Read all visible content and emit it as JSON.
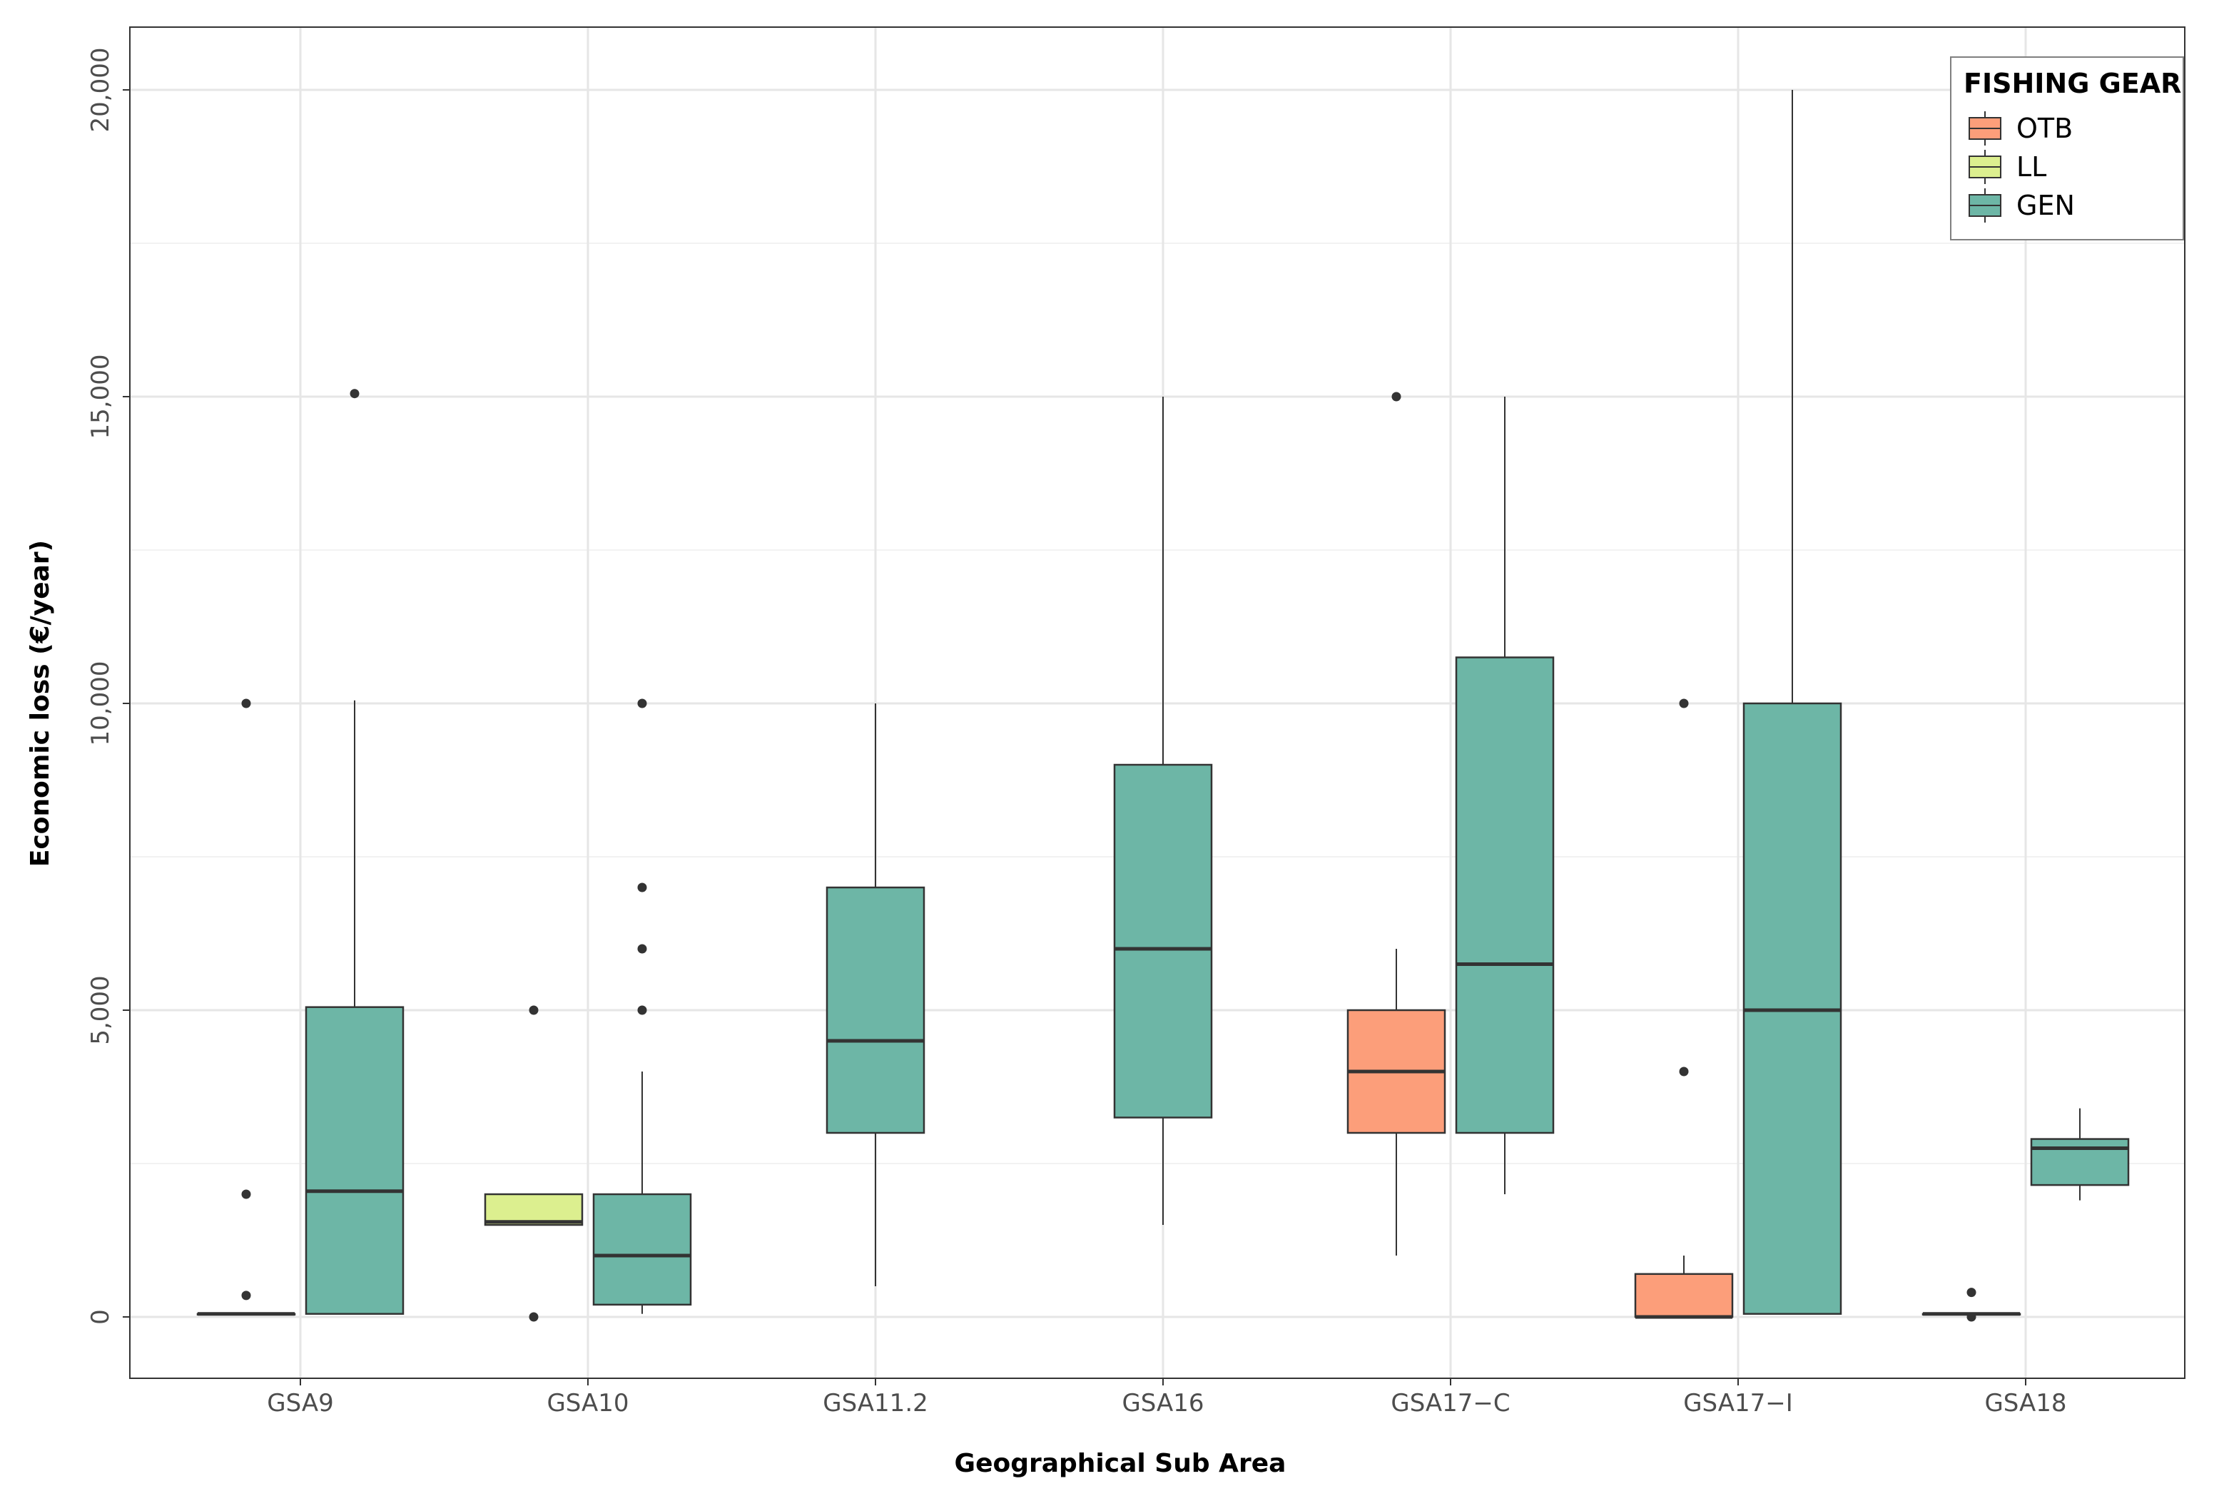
{
  "chart_data": {
    "type": "boxplot",
    "title": "",
    "xlabel": "Geographical Sub Area",
    "ylabel": "Economic loss (€/year)",
    "ylim": [
      -1000,
      21000
    ],
    "yticks": [
      0,
      5000,
      10000,
      15000,
      20000
    ],
    "ytick_labels": [
      "0",
      "5,000",
      "10,000",
      "15,000",
      "20,000"
    ],
    "grid": true,
    "categories": [
      "GSA9",
      "GSA10",
      "GSA11.2",
      "GSA16",
      "GSA17−C",
      "GSA17−I",
      "GSA18"
    ],
    "legend": {
      "title": "FISHING GEAR",
      "position": "top-right",
      "items": [
        {
          "key": "OTB",
          "label": "OTB",
          "color": "#FC9E7A"
        },
        {
          "key": "LL",
          "label": "LL",
          "color": "#DCEF8F"
        },
        {
          "key": "GEN",
          "label": "GEN",
          "color": "#6DB6A6"
        }
      ]
    },
    "series_order": [
      "OTB",
      "LL",
      "GEN"
    ],
    "boxes": [
      {
        "category": "GSA9",
        "gear": "OTB",
        "whisker_low": 50,
        "q1": 50,
        "median": 50,
        "q3": 50,
        "whisker_high": 50,
        "outliers": [
          10000,
          2000,
          350
        ]
      },
      {
        "category": "GSA9",
        "gear": "GEN",
        "whisker_low": 50,
        "q1": 50,
        "median": 2050,
        "q3": 5050,
        "whisker_high": 10050,
        "outliers": [
          15050
        ]
      },
      {
        "category": "GSA10",
        "gear": "LL",
        "whisker_low": 1500,
        "q1": 1500,
        "median": 1550,
        "q3": 2000,
        "whisker_high": 2000,
        "outliers": [
          5000,
          0
        ]
      },
      {
        "category": "GSA10",
        "gear": "GEN",
        "whisker_low": 50,
        "q1": 200,
        "median": 1000,
        "q3": 2000,
        "whisker_high": 4000,
        "outliers": [
          10000,
          7000,
          6000,
          5000
        ]
      },
      {
        "category": "GSA11.2",
        "gear": "GEN",
        "whisker_low": 500,
        "q1": 3000,
        "median": 4500,
        "q3": 7000,
        "whisker_high": 10000,
        "outliers": []
      },
      {
        "category": "GSA16",
        "gear": "GEN",
        "whisker_low": 1500,
        "q1": 3250,
        "median": 6000,
        "q3": 9000,
        "whisker_high": 15000,
        "outliers": []
      },
      {
        "category": "GSA17−C",
        "gear": "OTB",
        "whisker_low": 1000,
        "q1": 3000,
        "median": 4000,
        "q3": 5000,
        "whisker_high": 6000,
        "outliers": [
          15000
        ]
      },
      {
        "category": "GSA17−C",
        "gear": "GEN",
        "whisker_low": 2000,
        "q1": 3000,
        "median": 5750,
        "q3": 10750,
        "whisker_high": 15000,
        "outliers": []
      },
      {
        "category": "GSA17−I",
        "gear": "OTB",
        "whisker_low": 0,
        "q1": 0,
        "median": 0,
        "q3": 700,
        "whisker_high": 1000,
        "outliers": [
          10000,
          4000
        ]
      },
      {
        "category": "GSA17−I",
        "gear": "GEN",
        "whisker_low": 50,
        "q1": 50,
        "median": 5000,
        "q3": 10000,
        "whisker_high": 20000,
        "outliers": []
      },
      {
        "category": "GSA18",
        "gear": "OTB",
        "whisker_low": 50,
        "q1": 50,
        "median": 50,
        "q3": 50,
        "whisker_high": 50,
        "outliers": [
          400,
          0
        ]
      },
      {
        "category": "GSA18",
        "gear": "GEN",
        "whisker_low": 1900,
        "q1": 2150,
        "median": 2750,
        "q3": 2900,
        "whisker_high": 3400,
        "outliers": []
      }
    ]
  }
}
